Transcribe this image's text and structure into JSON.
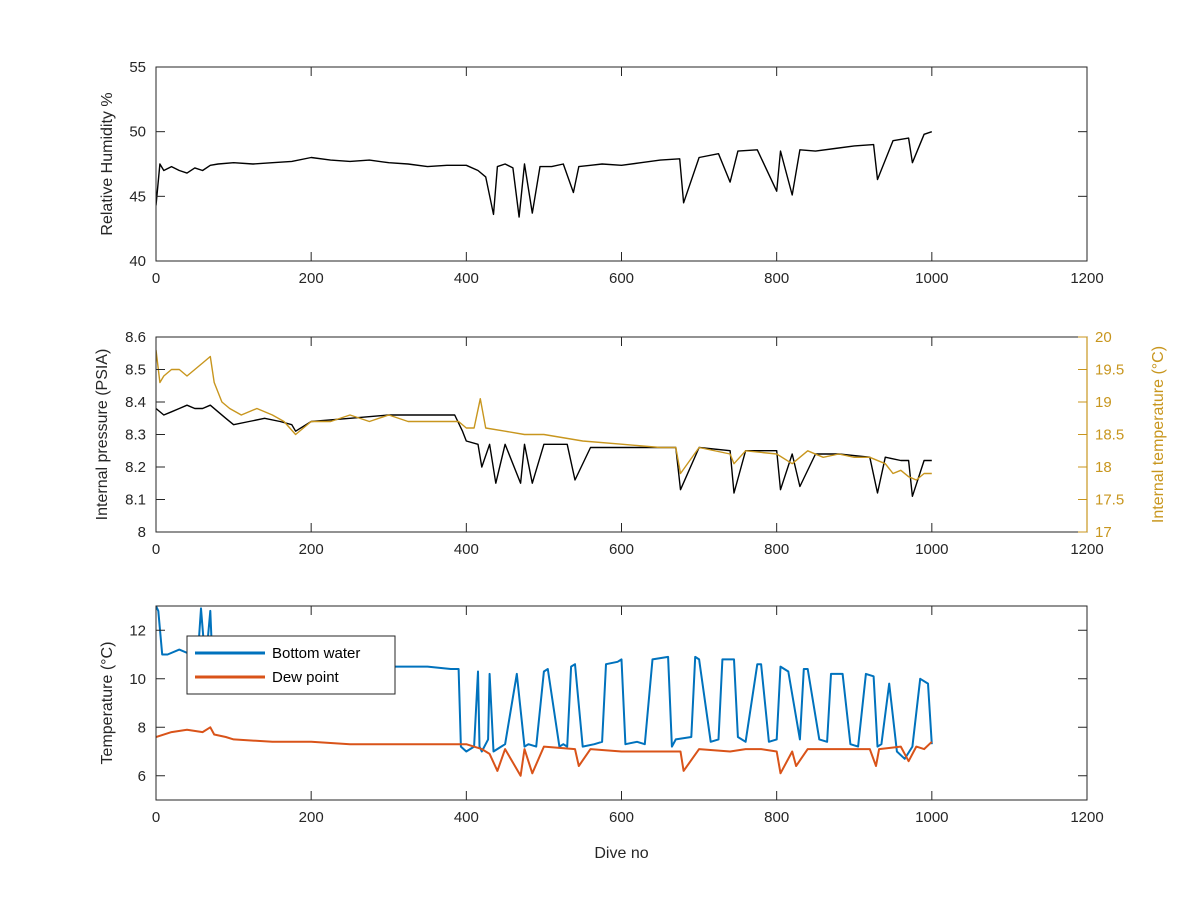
{
  "chart_data": [
    {
      "type": "line",
      "xlabel": "",
      "ylabel": "Relative Humidity %",
      "xlim": [
        0,
        1200
      ],
      "ylim": [
        40,
        55
      ],
      "xticks": [
        "0",
        "200",
        "400",
        "600",
        "800",
        "1000",
        "1200"
      ],
      "yticks": [
        "40",
        "45",
        "50",
        "55"
      ],
      "grid": false,
      "series": [
        {
          "color": "#000000",
          "x": [
            0,
            5,
            10,
            20,
            30,
            40,
            50,
            60,
            70,
            80,
            100,
            125,
            150,
            175,
            200,
            225,
            250,
            275,
            300,
            325,
            350,
            375,
            400,
            415,
            425,
            435,
            440,
            450,
            460,
            468,
            475,
            485,
            495,
            510,
            525,
            538,
            545,
            560,
            575,
            600,
            625,
            650,
            675,
            680,
            700,
            725,
            740,
            750,
            775,
            800,
            805,
            820,
            830,
            850,
            875,
            900,
            925,
            930,
            950,
            970,
            975,
            990,
            1000
          ],
          "y": [
            44.3,
            47.5,
            47,
            47.3,
            47,
            46.8,
            47.2,
            47,
            47.4,
            47.5,
            47.6,
            47.5,
            47.6,
            47.7,
            48,
            47.8,
            47.7,
            47.8,
            47.6,
            47.5,
            47.3,
            47.4,
            47.4,
            47,
            46.5,
            43.6,
            47.3,
            47.5,
            47.2,
            43.4,
            47.5,
            43.7,
            47.3,
            47.3,
            47.5,
            45.3,
            47.3,
            47.4,
            47.5,
            47.4,
            47.6,
            47.8,
            47.9,
            44.5,
            48,
            48.3,
            46.1,
            48.5,
            48.6,
            45.4,
            48.5,
            45.1,
            48.6,
            48.5,
            48.7,
            48.9,
            49,
            46.3,
            49.3,
            49.5,
            47.6,
            49.8,
            50
          ]
        }
      ]
    },
    {
      "type": "line",
      "xlabel": "",
      "ylabel": "Internal pressure (PSIA)",
      "ylabel_right": "Internal temperature (°C)",
      "xlim": [
        0,
        1200
      ],
      "ylim": [
        8,
        8.6
      ],
      "ylim_right": [
        17,
        20
      ],
      "xticks": [
        "0",
        "200",
        "400",
        "600",
        "800",
        "1000",
        "1200"
      ],
      "yticks": [
        "8",
        "8.1",
        "8.2",
        "8.3",
        "8.4",
        "8.5",
        "8.6"
      ],
      "yticks_right": [
        "17",
        "17.5",
        "18",
        "18.5",
        "19",
        "19.5",
        "20"
      ],
      "grid": false,
      "series": [
        {
          "axis": "left",
          "color": "#000000",
          "x": [
            0,
            10,
            20,
            30,
            40,
            50,
            60,
            70,
            80,
            90,
            100,
            120,
            140,
            160,
            175,
            180,
            200,
            250,
            300,
            350,
            385,
            395,
            400,
            415,
            420,
            430,
            438,
            450,
            470,
            475,
            485,
            500,
            530,
            540,
            560,
            600,
            640,
            670,
            676,
            700,
            740,
            745,
            760,
            780,
            800,
            805,
            820,
            830,
            850,
            880,
            920,
            930,
            940,
            960,
            970,
            975,
            990,
            1000
          ],
          "y": [
            8.38,
            8.36,
            8.37,
            8.38,
            8.39,
            8.38,
            8.38,
            8.39,
            8.37,
            8.35,
            8.33,
            8.34,
            8.35,
            8.34,
            8.33,
            8.31,
            8.34,
            8.35,
            8.36,
            8.36,
            8.36,
            8.31,
            8.28,
            8.27,
            8.2,
            8.27,
            8.15,
            8.27,
            8.15,
            8.27,
            8.15,
            8.27,
            8.27,
            8.16,
            8.26,
            8.26,
            8.26,
            8.26,
            8.13,
            8.26,
            8.25,
            8.12,
            8.25,
            8.25,
            8.25,
            8.13,
            8.24,
            8.14,
            8.24,
            8.24,
            8.23,
            8.12,
            8.23,
            8.22,
            8.22,
            8.11,
            8.22,
            8.22
          ]
        },
        {
          "axis": "right",
          "color": "#C8961E",
          "x": [
            0,
            5,
            10,
            20,
            30,
            40,
            50,
            60,
            70,
            75,
            85,
            95,
            110,
            130,
            150,
            165,
            180,
            200,
            225,
            250,
            275,
            300,
            325,
            350,
            375,
            390,
            400,
            410,
            418,
            425,
            450,
            475,
            500,
            550,
            600,
            650,
            670,
            676,
            700,
            740,
            745,
            760,
            800,
            820,
            840,
            860,
            880,
            900,
            920,
            940,
            950,
            960,
            970,
            980,
            990,
            1000
          ],
          "y": [
            19.8,
            19.3,
            19.4,
            19.5,
            19.5,
            19.4,
            19.5,
            19.6,
            19.7,
            19.3,
            19.0,
            18.9,
            18.8,
            18.9,
            18.8,
            18.7,
            18.5,
            18.7,
            18.7,
            18.8,
            18.7,
            18.8,
            18.7,
            18.7,
            18.7,
            18.7,
            18.6,
            18.6,
            19.05,
            18.6,
            18.55,
            18.5,
            18.5,
            18.4,
            18.35,
            18.3,
            18.3,
            17.9,
            18.3,
            18.2,
            18.05,
            18.25,
            18.2,
            18.05,
            18.25,
            18.15,
            18.2,
            18.15,
            18.15,
            18.05,
            17.9,
            17.95,
            17.85,
            17.8,
            17.9,
            17.9
          ]
        }
      ]
    },
    {
      "type": "line",
      "xlabel": "Dive no",
      "ylabel": "Temperature (°C)",
      "xlim": [
        0,
        1200
      ],
      "ylim": [
        5,
        13
      ],
      "xticks": [
        "0",
        "200",
        "400",
        "600",
        "800",
        "1000",
        "1200"
      ],
      "yticks": [
        "6",
        "8",
        "10",
        "12"
      ],
      "grid": false,
      "legend_position": "top-left",
      "series": [
        {
          "name": "Bottom water",
          "color": "#0072BD",
          "x": [
            0,
            3,
            8,
            15,
            30,
            45,
            55,
            58,
            62,
            65,
            70,
            72,
            75,
            80,
            100,
            150,
            200,
            250,
            300,
            350,
            380,
            390,
            393,
            400,
            410,
            415,
            417,
            420,
            428,
            430,
            435,
            445,
            450,
            465,
            475,
            480,
            490,
            500,
            505,
            520,
            525,
            530,
            535,
            540,
            550,
            565,
            575,
            580,
            595,
            600,
            605,
            620,
            630,
            640,
            660,
            665,
            670,
            690,
            695,
            700,
            715,
            725,
            730,
            745,
            750,
            760,
            775,
            780,
            790,
            800,
            805,
            815,
            830,
            835,
            840,
            855,
            865,
            870,
            885,
            895,
            905,
            915,
            925,
            930,
            935,
            945,
            955,
            965,
            975,
            985,
            995,
            1000
          ],
          "y": [
            13,
            12.8,
            11,
            11,
            11.2,
            11,
            11.5,
            12.9,
            11.3,
            11,
            12.8,
            11.2,
            11,
            10.9,
            10.8,
            10.7,
            10.7,
            10.6,
            10.5,
            10.5,
            10.4,
            10.4,
            7.2,
            7.0,
            7.2,
            10.3,
            7.2,
            7.0,
            7.5,
            10.2,
            7.0,
            7.2,
            7.3,
            10.2,
            7.2,
            7.3,
            7.2,
            10.3,
            10.4,
            7.2,
            7.3,
            7.2,
            10.5,
            10.6,
            7.2,
            7.3,
            7.4,
            10.6,
            10.7,
            10.8,
            7.3,
            7.4,
            7.3,
            10.8,
            10.9,
            7.2,
            7.5,
            7.6,
            10.9,
            10.8,
            7.4,
            7.5,
            10.8,
            10.8,
            7.6,
            7.4,
            10.6,
            10.6,
            7.4,
            7.5,
            10.5,
            10.3,
            7.5,
            10.4,
            10.4,
            7.5,
            7.4,
            10.2,
            10.2,
            7.3,
            7.2,
            10.2,
            10.1,
            7.2,
            7.3,
            9.8,
            7.0,
            6.7,
            7.2,
            10.0,
            9.8,
            7.3
          ]
        },
        {
          "name": "Dew point",
          "color": "#D95319",
          "x": [
            0,
            20,
            40,
            60,
            70,
            75,
            90,
            100,
            150,
            200,
            250,
            300,
            350,
            400,
            420,
            430,
            440,
            450,
            470,
            475,
            485,
            500,
            540,
            545,
            560,
            600,
            640,
            676,
            680,
            700,
            740,
            760,
            780,
            800,
            805,
            820,
            825,
            840,
            880,
            920,
            928,
            932,
            960,
            970,
            980,
            990,
            1000
          ],
          "y": [
            7.6,
            7.8,
            7.9,
            7.8,
            8.0,
            7.7,
            7.6,
            7.5,
            7.4,
            7.4,
            7.3,
            7.3,
            7.3,
            7.3,
            7.1,
            6.9,
            6.2,
            7.1,
            6.0,
            7.1,
            6.1,
            7.2,
            7.1,
            6.4,
            7.1,
            7.0,
            7.0,
            7.0,
            6.2,
            7.1,
            7.0,
            7.1,
            7.1,
            7.0,
            6.1,
            7.0,
            6.4,
            7.1,
            7.1,
            7.1,
            6.4,
            7.1,
            7.2,
            6.6,
            7.2,
            7.1,
            7.4
          ]
        }
      ]
    }
  ]
}
